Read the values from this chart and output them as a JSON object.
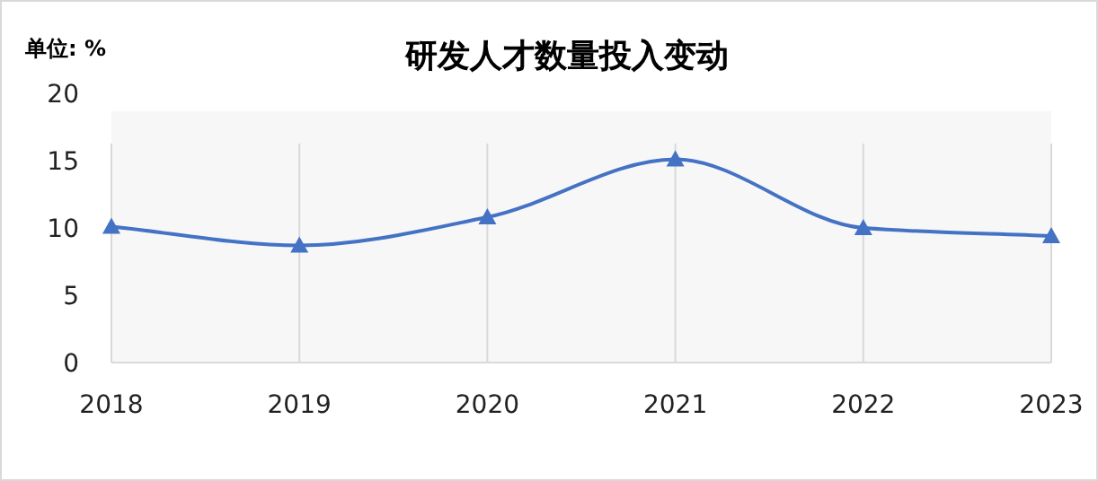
{
  "chart_data": {
    "type": "line",
    "title": "研发人才数量投入变动",
    "ylabel": "单位: %",
    "categories": [
      "2018",
      "2019",
      "2020",
      "2021",
      "2022",
      "2023"
    ],
    "series": [
      {
        "color": "#4472c4",
        "values": [
          10.1,
          8.7,
          10.8,
          15.1,
          10.0,
          9.4
        ]
      }
    ],
    "ylim": [
      0,
      20
    ],
    "yticks": [
      0,
      5,
      10,
      15,
      20
    ],
    "grid": "x",
    "marker": "triangle",
    "line_style": "solid"
  }
}
